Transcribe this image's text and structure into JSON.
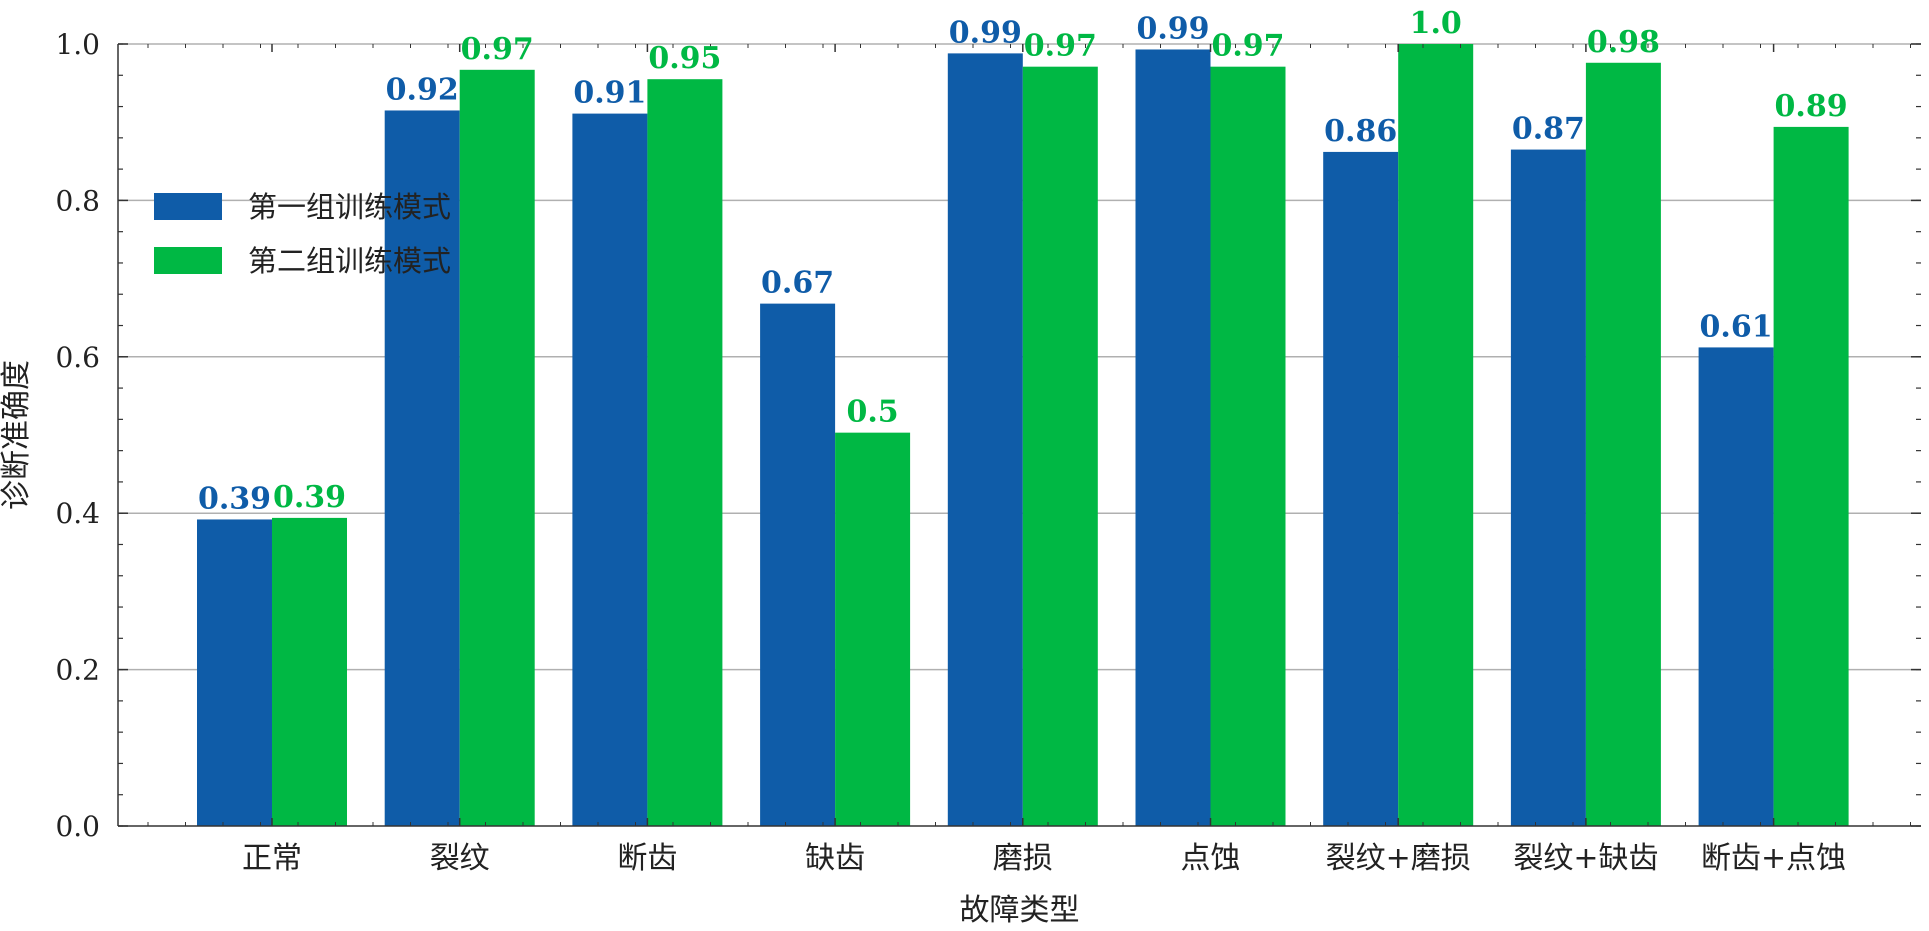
{
  "chart_data": {
    "type": "bar",
    "title": "",
    "xlabel": "故障类型",
    "ylabel": "诊断准确度",
    "ylim": [
      0,
      1.0
    ],
    "yticks": [
      "0.0",
      "0.2",
      "0.4",
      "0.6",
      "0.8",
      "1.0"
    ],
    "grid": true,
    "legend_position": "upper-left",
    "categories": [
      "正常",
      "裂纹",
      "断齿",
      "缺齿",
      "磨损",
      "点蚀",
      "裂纹+磨损",
      "裂纹+缺齿",
      "断齿+点蚀"
    ],
    "series": [
      {
        "name": "第一组训练模式",
        "color": "#0f5ca8",
        "values": [
          0.392,
          0.915,
          0.911,
          0.668,
          0.988,
          0.993,
          0.862,
          0.865,
          0.612
        ],
        "labels": [
          "0.39",
          "0.92",
          "0.91",
          "0.67",
          "0.99",
          "0.99",
          "0.86",
          "0.87",
          "0.61"
        ]
      },
      {
        "name": "第二组训练模式",
        "color": "#00b844",
        "values": [
          0.394,
          0.967,
          0.955,
          0.503,
          0.971,
          0.971,
          1.0,
          0.976,
          0.894
        ],
        "labels": [
          "0.39",
          "0.97",
          "0.95",
          "0.5",
          "0.97",
          "0.97",
          "1.0",
          "0.98",
          "0.89"
        ]
      }
    ]
  }
}
